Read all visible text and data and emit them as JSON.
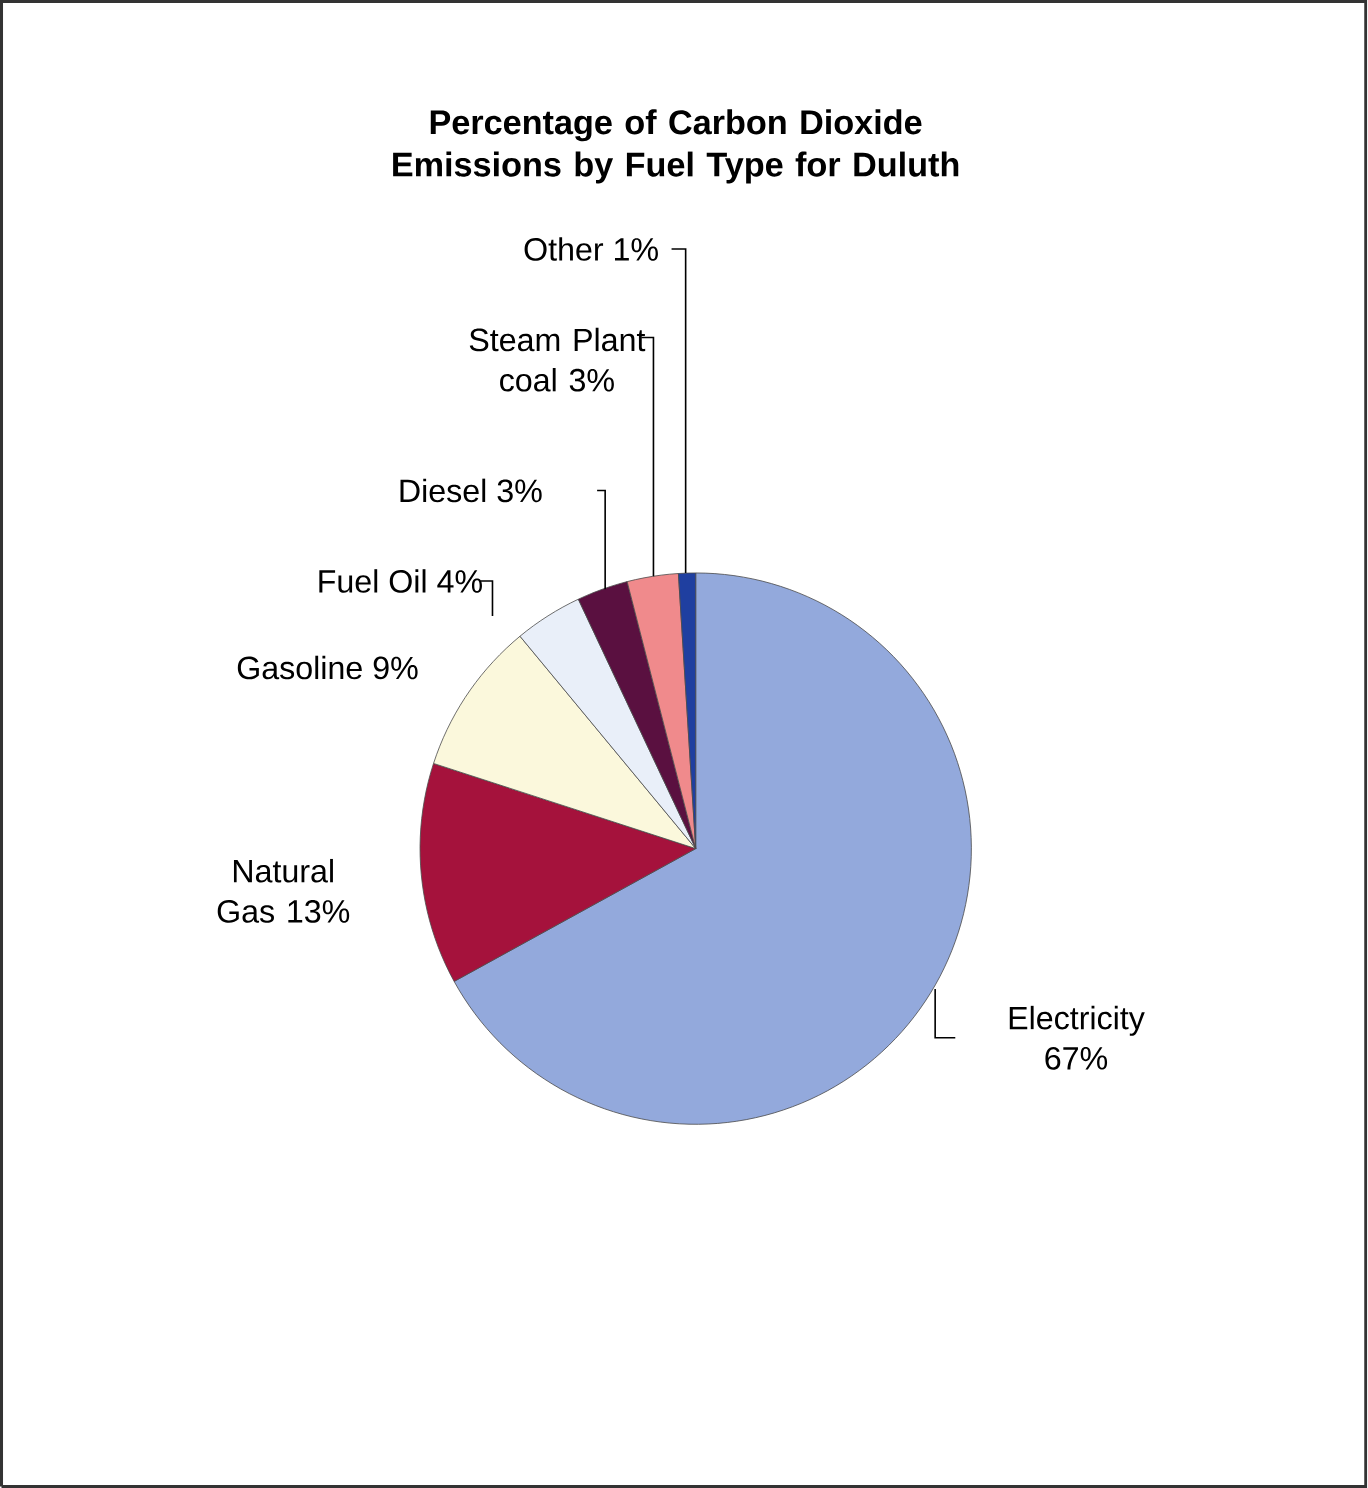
{
  "chart_data": {
    "type": "pie",
    "title": "Percentage of Carbon Dioxide Emissions by Fuel Type for Duluth",
    "categories": [
      "Electricity",
      "Natural Gas",
      "Gasoline",
      "Fuel Oil",
      "Diesel",
      "Steam Plant coal",
      "Other"
    ],
    "values": [
      67,
      13,
      9,
      4,
      3,
      3,
      1
    ],
    "value_labels": [
      "67%",
      "13%",
      "9%",
      "4%",
      "3%",
      "3%",
      "1%"
    ],
    "colors": [
      "#93a9dc",
      "#a5123c",
      "#fbf8dc",
      "#e9eff9",
      "#5a1040",
      "#f08a8c",
      "#1f3fa0"
    ]
  }
}
